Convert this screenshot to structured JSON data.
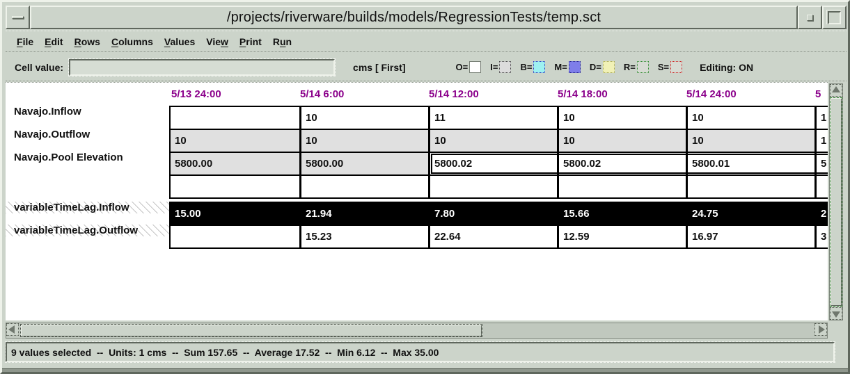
{
  "window": {
    "title": "/projects/riverware/builds/models/RegressionTests/temp.sct"
  },
  "menu": {
    "items": [
      {
        "pre": "",
        "m": "F",
        "post": "ile"
      },
      {
        "pre": "",
        "m": "E",
        "post": "dit"
      },
      {
        "pre": "",
        "m": "R",
        "post": "ows"
      },
      {
        "pre": "",
        "m": "C",
        "post": "olumns"
      },
      {
        "pre": "",
        "m": "V",
        "post": "alues"
      },
      {
        "pre": "Vie",
        "m": "w",
        "post": ""
      },
      {
        "pre": "",
        "m": "P",
        "post": "rint"
      },
      {
        "pre": "R",
        "m": "u",
        "post": "n"
      }
    ]
  },
  "toolbar": {
    "cell_value_label": "Cell value:",
    "cell_value": "",
    "units_label": "cms [ First]",
    "editing_label": "Editing: ON",
    "flags": [
      {
        "label": "O=",
        "name": "output-flag-swatch",
        "color": "#ffffff",
        "border": "#777f75",
        "border_style": "solid"
      },
      {
        "label": "I=",
        "name": "input-flag-swatch",
        "color": "#dcdcdc",
        "border": "#444444",
        "border_style": "dotted"
      },
      {
        "label": "B=",
        "name": "best-efficiency-flag-swatch",
        "color": "#9ef1f1",
        "border": "#3333bb",
        "border_style": "dotted"
      },
      {
        "label": "M=",
        "name": "max-capacity-flag-swatch",
        "color": "#7e7ee9",
        "border": "#222288",
        "border_style": "dotted"
      },
      {
        "label": "D=",
        "name": "drift-flag-swatch",
        "color": "#f1f1b6",
        "border": "#a8a855",
        "border_style": "dotted"
      },
      {
        "label": "R=",
        "name": "rules-flag-swatch",
        "color": "#d7dbd3",
        "border": "#2e8b2e",
        "border_style": "dotted"
      },
      {
        "label": "S=",
        "name": "surcharge-flag-swatch",
        "color": "#d7dbd3",
        "border": "#cc2222",
        "border_style": "dotted"
      }
    ]
  },
  "table": {
    "columns": [
      "5/13 24:00",
      "5/14 6:00",
      "5/14 12:00",
      "5/14 18:00",
      "5/14 24:00",
      "5"
    ],
    "sections": [
      {
        "rows": [
          {
            "label": "Navajo.Inflow",
            "hatch": false,
            "highlight": false,
            "cells": [
              {
                "v": "",
                "s": ""
              },
              {
                "v": "10",
                "s": ""
              },
              {
                "v": "11",
                "s": ""
              },
              {
                "v": "10",
                "s": ""
              },
              {
                "v": "10",
                "s": ""
              },
              {
                "v": "1",
                "s": ""
              }
            ]
          },
          {
            "label": "Navajo.Outflow",
            "hatch": false,
            "highlight": false,
            "cells": [
              {
                "v": "10",
                "s": "gray"
              },
              {
                "v": "10",
                "s": "gray"
              },
              {
                "v": "10",
                "s": "gray"
              },
              {
                "v": "10",
                "s": "gray"
              },
              {
                "v": "10",
                "s": "gray"
              },
              {
                "v": "1",
                "s": ""
              }
            ]
          },
          {
            "label": "Navajo.Pool Elevation",
            "hatch": false,
            "highlight": false,
            "cells": [
              {
                "v": "5800.00",
                "s": "gray"
              },
              {
                "v": "5800.00",
                "s": "gray"
              },
              {
                "v": "5800.02",
                "s": "sel sel-first"
              },
              {
                "v": "5800.02",
                "s": "sel"
              },
              {
                "v": "5800.01",
                "s": "sel"
              },
              {
                "v": "5",
                "s": "sel"
              }
            ]
          },
          {
            "label": "",
            "hatch": false,
            "highlight": false,
            "cells": [
              {
                "v": "",
                "s": ""
              },
              {
                "v": "",
                "s": ""
              },
              {
                "v": "",
                "s": ""
              },
              {
                "v": "",
                "s": ""
              },
              {
                "v": "",
                "s": ""
              },
              {
                "v": "",
                "s": ""
              }
            ]
          }
        ]
      },
      {
        "rows": [
          {
            "label": "variableTimeLag.Inflow",
            "hatch": true,
            "highlight": true,
            "cells": [
              {
                "v": "15.00",
                "s": ""
              },
              {
                "v": "21.94",
                "s": ""
              },
              {
                "v": "7.80",
                "s": ""
              },
              {
                "v": "15.66",
                "s": ""
              },
              {
                "v": "24.75",
                "s": ""
              },
              {
                "v": "2",
                "s": ""
              }
            ]
          },
          {
            "label": "variableTimeLag.Outflow",
            "hatch": true,
            "highlight": false,
            "cells": [
              {
                "v": "",
                "s": ""
              },
              {
                "v": "15.23",
                "s": ""
              },
              {
                "v": "22.64",
                "s": ""
              },
              {
                "v": "12.59",
                "s": ""
              },
              {
                "v": "16.97",
                "s": ""
              },
              {
                "v": "3",
                "s": ""
              }
            ]
          }
        ]
      }
    ]
  },
  "statusbar": {
    "text": "9 values selected  --  Units: 1 cms  --  Sum 157.65  --  Average 17.52  --  Min 6.12  --  Max 35.00"
  },
  "colors": {
    "window_bg": "#ccd4ca",
    "header_text": "#8b008b",
    "cell_gray": "#e0e0e0",
    "highlight_bg": "#000000",
    "highlight_text": "#ffffff"
  }
}
